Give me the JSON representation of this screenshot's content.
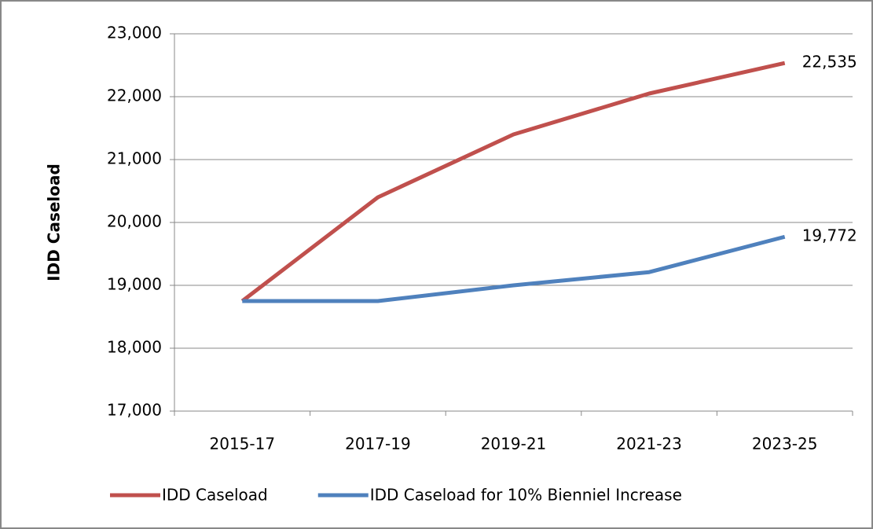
{
  "chart_data": {
    "type": "line",
    "y_label": "IDD Caseload",
    "categories": [
      "2015-17",
      "2017-19",
      "2019-21",
      "2021-23",
      "2023-25"
    ],
    "series": [
      {
        "name": "IDD Caseload",
        "color": "#c0504d",
        "values": [
          18750,
          20400,
          21400,
          22050,
          22535
        ],
        "value_labels": [
          null,
          null,
          null,
          null,
          "22,535"
        ]
      },
      {
        "name": "IDD Caseload for 10% Bienniel Increase",
        "color": "#4f81bd",
        "values": [
          18750,
          18750,
          19000,
          19210,
          19772
        ],
        "value_labels": [
          null,
          null,
          null,
          null,
          "19,772"
        ]
      }
    ],
    "ylim": [
      17000,
      23000
    ],
    "yticks": [
      {
        "value": 17000,
        "label": "17,000"
      },
      {
        "value": 18000,
        "label": "18,000"
      },
      {
        "value": 19000,
        "label": "19,000"
      },
      {
        "value": 20000,
        "label": "20,000"
      },
      {
        "value": 21000,
        "label": "21,000"
      },
      {
        "value": 22000,
        "label": "22,000"
      },
      {
        "value": 23000,
        "label": "23,000"
      }
    ],
    "grid": true
  }
}
